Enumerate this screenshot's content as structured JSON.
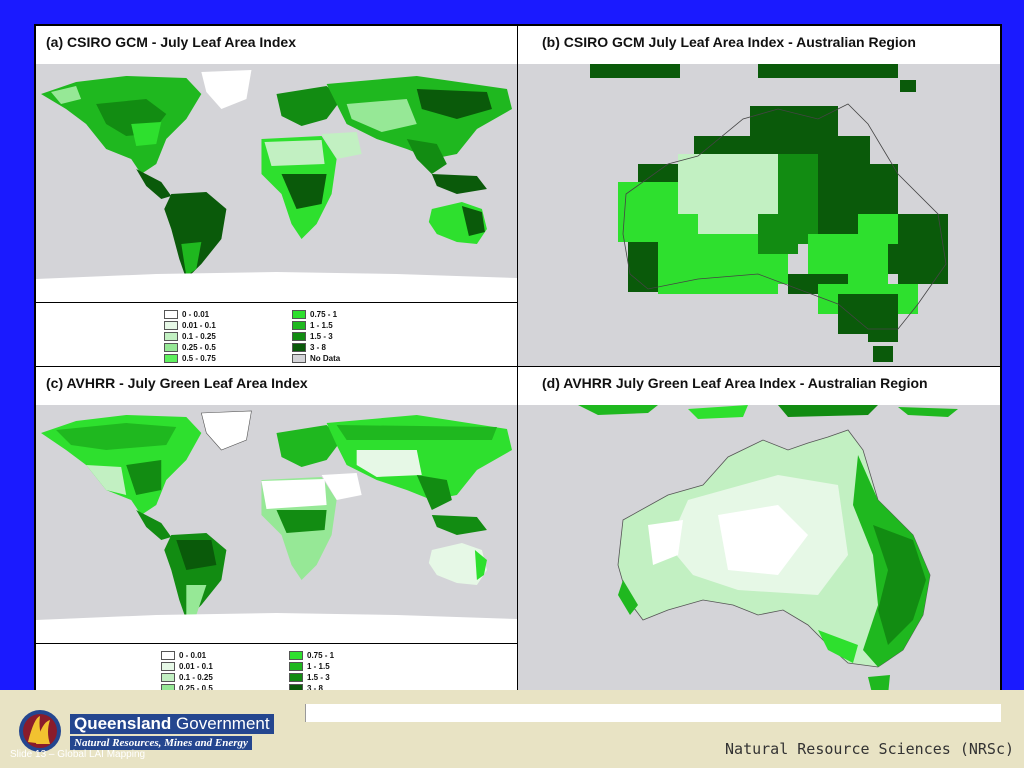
{
  "panels": {
    "a": {
      "title": "(a) CSIRO GCM - July Leaf Area Index"
    },
    "b": {
      "title": "(b) CSIRO GCM July Leaf Area Index - Australian Region"
    },
    "c": {
      "title": "(c) AVHRR - July Green Leaf Area Index"
    },
    "d": {
      "title": "(d) AVHRR July Green Leaf Area Index - Australian Region"
    }
  },
  "legend": {
    "left": [
      {
        "label": "0 - 0.01",
        "color": "#ffffff"
      },
      {
        "label": "0.01 - 0.1",
        "color": "#e6f8e6"
      },
      {
        "label": "0.1 - 0.25",
        "color": "#c2f0c2"
      },
      {
        "label": "0.25 - 0.5",
        "color": "#96e896"
      },
      {
        "label": "0.5 - 0.75",
        "color": "#5ef05e"
      }
    ],
    "right": [
      {
        "label": "0.75 - 1",
        "color": "#2ee02e"
      },
      {
        "label": "1 - 1.5",
        "color": "#1fb81f"
      },
      {
        "label": "1.5 - 3",
        "color": "#128c12"
      },
      {
        "label": "3 - 8",
        "color": "#0a5a0a"
      },
      {
        "label": "No Data",
        "color": "#d4d4d8"
      }
    ]
  },
  "colors": {
    "background": "#1a1aff",
    "ocean": "#d4d4d8",
    "footer": "#e8e3c4",
    "logo_blue": "#24468f"
  },
  "footer": {
    "logo_title_bold": "Queensland",
    "logo_title_rest": " Government",
    "logo_subtitle": "Natural Resources, Mines and Energy",
    "slide_caption": "Slide 13 – Global LAI Mapping",
    "org_name": "Natural Resource Sciences (NRSc)",
    "logo_icon": "queensland-emblem-icon"
  }
}
